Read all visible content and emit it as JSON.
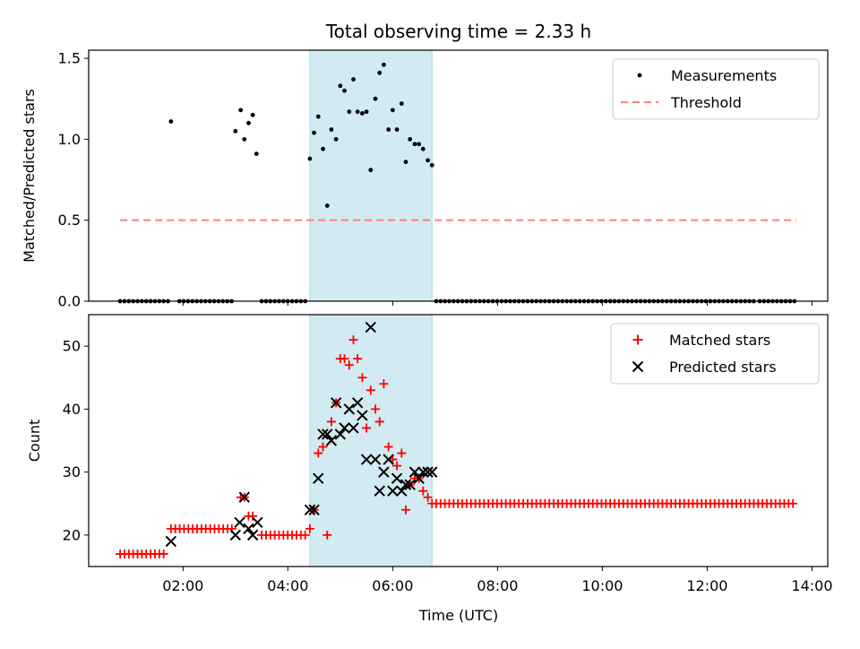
{
  "chart_data": [
    {
      "type": "scatter",
      "title": "Total observing time = 2.33 h",
      "ylabel": "Matched/Predicted stars",
      "xlabel": "",
      "xlim": [
        0.2,
        14.3
      ],
      "ylim": [
        0,
        1.55
      ],
      "yticks": [
        0.0,
        0.5,
        1.0,
        1.5
      ],
      "ytick_labels": [
        "0.0",
        "0.5",
        "1.0",
        "1.5"
      ],
      "shaded_interval": [
        4.42,
        6.75
      ],
      "shade_color": "#add8e6",
      "legend": {
        "placement": "top-right",
        "entries": [
          "Measurements",
          "Threshold"
        ]
      },
      "threshold": {
        "name": "Threshold",
        "value": 0.5,
        "x_range": [
          0.8,
          13.7
        ],
        "color": "#ff7f7f"
      },
      "series": [
        {
          "name": "Measurements",
          "color": "#000000",
          "points": [
            [
              1.77,
              1.11
            ],
            [
              3.0,
              1.05
            ],
            [
              3.1,
              1.18
            ],
            [
              3.17,
              1.0
            ],
            [
              3.25,
              1.1
            ],
            [
              3.33,
              1.15
            ],
            [
              3.4,
              0.91
            ],
            [
              4.42,
              0.88
            ],
            [
              4.5,
              1.04
            ],
            [
              4.58,
              1.14
            ],
            [
              4.67,
              0.94
            ],
            [
              4.75,
              0.59
            ],
            [
              4.83,
              1.06
            ],
            [
              4.92,
              1.0
            ],
            [
              5.0,
              1.33
            ],
            [
              5.08,
              1.3
            ],
            [
              5.17,
              1.17
            ],
            [
              5.25,
              1.37
            ],
            [
              5.33,
              1.17
            ],
            [
              5.42,
              1.16
            ],
            [
              5.5,
              1.17
            ],
            [
              5.58,
              0.81
            ],
            [
              5.67,
              1.25
            ],
            [
              5.75,
              1.41
            ],
            [
              5.83,
              1.46
            ],
            [
              5.92,
              1.06
            ],
            [
              6.0,
              1.18
            ],
            [
              6.08,
              1.06
            ],
            [
              6.17,
              1.22
            ],
            [
              6.25,
              0.86
            ],
            [
              6.33,
              1.0
            ],
            [
              6.42,
              0.97
            ],
            [
              6.5,
              0.97
            ],
            [
              6.58,
              0.94
            ],
            [
              6.67,
              0.87
            ],
            [
              6.75,
              0.84
            ]
          ],
          "zero_runs": [
            [
              0.8,
              1.77,
              0.083
            ],
            [
              1.93,
              2.95,
              0.083
            ],
            [
              3.5,
              4.35,
              0.083
            ],
            [
              6.83,
              12.9,
              0.083
            ],
            [
              13.0,
              13.7,
              0.083
            ]
          ]
        }
      ]
    },
    {
      "type": "scatter",
      "title": "",
      "ylabel": "Count",
      "xlabel": "Time (UTC)",
      "xlim": [
        0.2,
        14.3
      ],
      "ylim": [
        15,
        55
      ],
      "yticks": [
        20,
        30,
        40,
        50
      ],
      "ytick_labels": [
        "20",
        "30",
        "40",
        "50"
      ],
      "xticks": [
        2,
        4,
        6,
        8,
        10,
        12,
        14
      ],
      "xtick_labels": [
        "02:00",
        "04:00",
        "06:00",
        "08:00",
        "10:00",
        "12:00",
        "14:00"
      ],
      "shaded_interval": [
        4.42,
        6.75
      ],
      "shade_color": "#add8e6",
      "legend": {
        "placement": "top-right",
        "entries": [
          "Matched stars",
          "Predicted stars"
        ]
      },
      "series": [
        {
          "name": "Matched stars",
          "color": "#ff0000",
          "marker": "+",
          "runs": [
            [
              0.8,
              1.7,
              0.083,
              17
            ],
            [
              1.77,
              3.0,
              0.083,
              21
            ],
            [
              3.5,
              4.35,
              0.083,
              20
            ],
            [
              6.83,
              13.7,
              0.083,
              25
            ]
          ],
          "points": [
            [
              3.1,
              26
            ],
            [
              3.17,
              26
            ],
            [
              3.25,
              23
            ],
            [
              3.33,
              23
            ],
            [
              4.42,
              21
            ],
            [
              4.5,
              24
            ],
            [
              4.58,
              33
            ],
            [
              4.67,
              34
            ],
            [
              4.75,
              20
            ],
            [
              4.83,
              38
            ],
            [
              4.92,
              41
            ],
            [
              5.0,
              48
            ],
            [
              5.08,
              48
            ],
            [
              5.17,
              47
            ],
            [
              5.25,
              51
            ],
            [
              5.33,
              48
            ],
            [
              5.42,
              45
            ],
            [
              5.5,
              37
            ],
            [
              5.58,
              43
            ],
            [
              5.67,
              40
            ],
            [
              5.75,
              38
            ],
            [
              5.83,
              44
            ],
            [
              5.92,
              34
            ],
            [
              6.0,
              32
            ],
            [
              6.08,
              31
            ],
            [
              6.17,
              33
            ],
            [
              6.25,
              24
            ],
            [
              6.33,
              28
            ],
            [
              6.42,
              29
            ],
            [
              6.5,
              29
            ],
            [
              6.58,
              27
            ],
            [
              6.67,
              26
            ],
            [
              6.75,
              25
            ]
          ]
        },
        {
          "name": "Predicted stars",
          "color": "#000000",
          "marker": "x",
          "points": [
            [
              1.77,
              19
            ],
            [
              3.0,
              20
            ],
            [
              3.08,
              22
            ],
            [
              3.17,
              26
            ],
            [
              3.25,
              21
            ],
            [
              3.33,
              20
            ],
            [
              3.42,
              22
            ],
            [
              4.42,
              24
            ],
            [
              4.5,
              24
            ],
            [
              4.58,
              29
            ],
            [
              4.67,
              36
            ],
            [
              4.75,
              36
            ],
            [
              4.83,
              35
            ],
            [
              4.92,
              41
            ],
            [
              5.0,
              36
            ],
            [
              5.08,
              37
            ],
            [
              5.17,
              40
            ],
            [
              5.25,
              37
            ],
            [
              5.33,
              41
            ],
            [
              5.42,
              39
            ],
            [
              5.5,
              32
            ],
            [
              5.58,
              53
            ],
            [
              5.67,
              32
            ],
            [
              5.75,
              27
            ],
            [
              5.83,
              30
            ],
            [
              5.92,
              32
            ],
            [
              6.0,
              27
            ],
            [
              6.08,
              29
            ],
            [
              6.17,
              27
            ],
            [
              6.25,
              28
            ],
            [
              6.33,
              28
            ],
            [
              6.42,
              30
            ],
            [
              6.5,
              29
            ],
            [
              6.58,
              30
            ],
            [
              6.67,
              30
            ],
            [
              6.75,
              30
            ]
          ]
        }
      ]
    }
  ]
}
